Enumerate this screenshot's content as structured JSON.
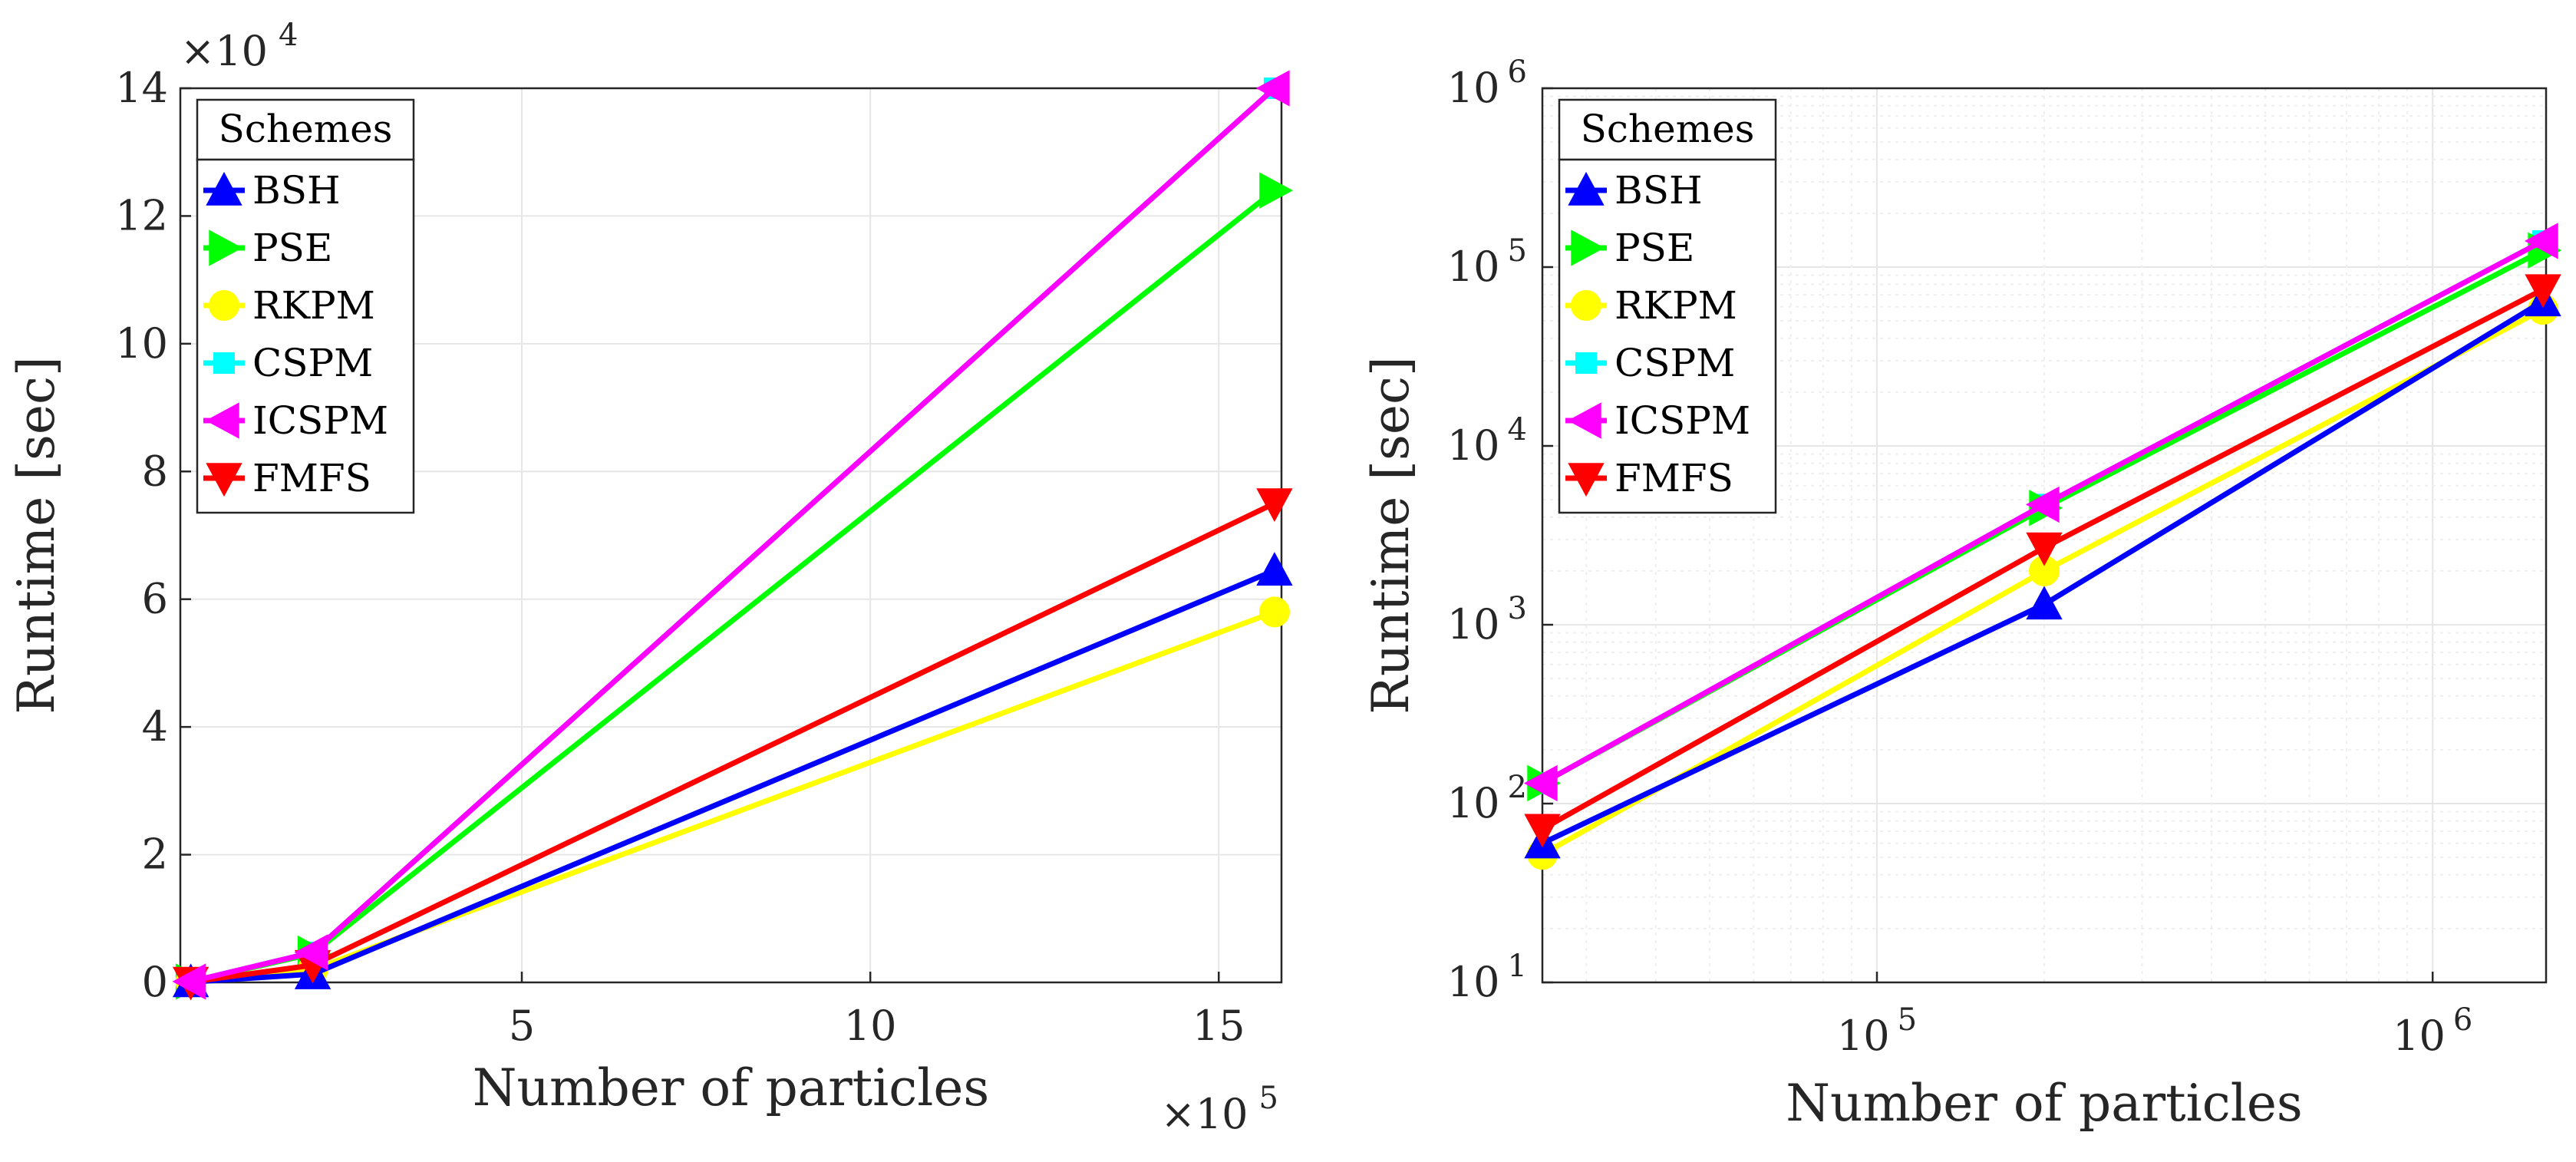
{
  "chart_data": [
    {
      "type": "line",
      "scale": "linear",
      "xlabel": "Number of particles",
      "ylabel": "Runtime [sec]",
      "x_multiplier_label": "×10",
      "x_multiplier_exp": "5",
      "y_multiplier_label": "×10",
      "y_multiplier_exp": "4",
      "xlim": [
        0.1,
        15.9
      ],
      "ylim": [
        0,
        14
      ],
      "xticks": [
        5,
        10,
        15
      ],
      "xtick_labels": [
        "5",
        "10",
        "15"
      ],
      "yticks": [
        0,
        2,
        4,
        6,
        8,
        10,
        12,
        14
      ],
      "ytick_labels": [
        "0",
        "2",
        "4",
        "6",
        "8",
        "10",
        "12",
        "14"
      ],
      "grid": true,
      "legend_title": "Schemes",
      "legend_location": "top-left",
      "x": [
        0.25,
        2.0,
        15.8
      ],
      "series": [
        {
          "name": "BSH",
          "color": "#0000ff",
          "marker": "triangle-up",
          "values": [
            0.006,
            0.13,
            6.45
          ]
        },
        {
          "name": "PSE",
          "color": "#00ff00",
          "marker": "triangle-right",
          "values": [
            0.013,
            0.45,
            12.4
          ]
        },
        {
          "name": "RKPM",
          "color": "#ffff00",
          "marker": "circle",
          "values": [
            0.005,
            0.2,
            5.8
          ]
        },
        {
          "name": "CSPM",
          "color": "#00ffff",
          "marker": "square",
          "values": [
            0.013,
            0.47,
            14.0
          ]
        },
        {
          "name": "ICSPM",
          "color": "#ff00ff",
          "marker": "triangle-left",
          "values": [
            0.013,
            0.47,
            14.0
          ]
        },
        {
          "name": "FMFS",
          "color": "#ff0000",
          "marker": "triangle-down",
          "values": [
            0.007,
            0.27,
            7.5
          ]
        }
      ]
    },
    {
      "type": "line",
      "scale": "log-log",
      "xlabel": "Number of particles",
      "ylabel": "Runtime [sec]",
      "xlim": [
        25000,
        1600000
      ],
      "ylim": [
        10,
        1000000
      ],
      "xticks": [
        100000,
        1000000
      ],
      "xtick_bases": [
        "10",
        "10"
      ],
      "xtick_exps": [
        "5",
        "6"
      ],
      "yticks": [
        10,
        100,
        1000,
        10000,
        100000,
        1000000
      ],
      "ytick_bases": [
        "10",
        "10",
        "10",
        "10",
        "10",
        "10"
      ],
      "ytick_exps": [
        "1",
        "2",
        "3",
        "4",
        "5",
        "6"
      ],
      "grid": true,
      "legend_title": "Schemes",
      "legend_location": "top-left",
      "x": [
        25000,
        200000,
        1580000
      ],
      "series": [
        {
          "name": "BSH",
          "color": "#0000ff",
          "marker": "triangle-up",
          "values": [
            60,
            1300,
            64500
          ]
        },
        {
          "name": "PSE",
          "color": "#00ff00",
          "marker": "triangle-right",
          "values": [
            130,
            4500,
            124000
          ]
        },
        {
          "name": "RKPM",
          "color": "#ffff00",
          "marker": "circle",
          "values": [
            52,
            2000,
            58000
          ]
        },
        {
          "name": "CSPM",
          "color": "#00ffff",
          "marker": "square",
          "values": [
            130,
            4700,
            140000
          ]
        },
        {
          "name": "ICSPM",
          "color": "#ff00ff",
          "marker": "triangle-left",
          "values": [
            130,
            4700,
            140000
          ]
        },
        {
          "name": "FMFS",
          "color": "#ff0000",
          "marker": "triangle-down",
          "values": [
            72,
            2700,
            75000
          ]
        }
      ]
    }
  ]
}
